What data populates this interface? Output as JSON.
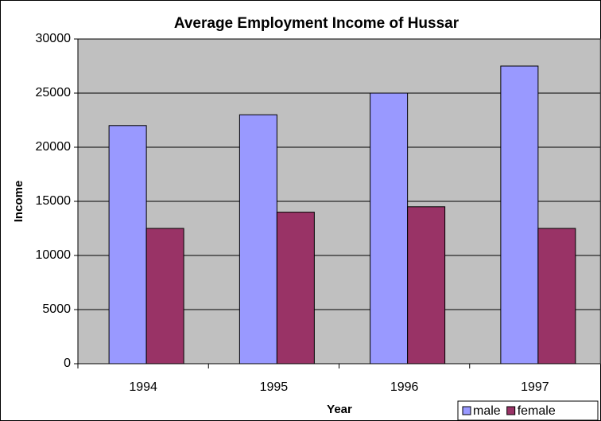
{
  "chart_data": {
    "type": "bar",
    "title": "Average Employment Income of Hussar",
    "x_label": "Year",
    "y_label": "Income",
    "categories": [
      "1994",
      "1995",
      "1996",
      "1997"
    ],
    "series": [
      {
        "name": "male",
        "color": "#9999ff",
        "values": [
          22000,
          23000,
          25000,
          27500
        ]
      },
      {
        "name": "female",
        "color": "#993366",
        "values": [
          12500,
          14000,
          14500,
          12500
        ]
      }
    ],
    "ylim": [
      0,
      30000
    ],
    "yticks": [
      0,
      5000,
      10000,
      15000,
      20000,
      25000,
      30000
    ],
    "grid": true,
    "legend": "bottom-right",
    "plot_background": "#c0c0c0"
  }
}
